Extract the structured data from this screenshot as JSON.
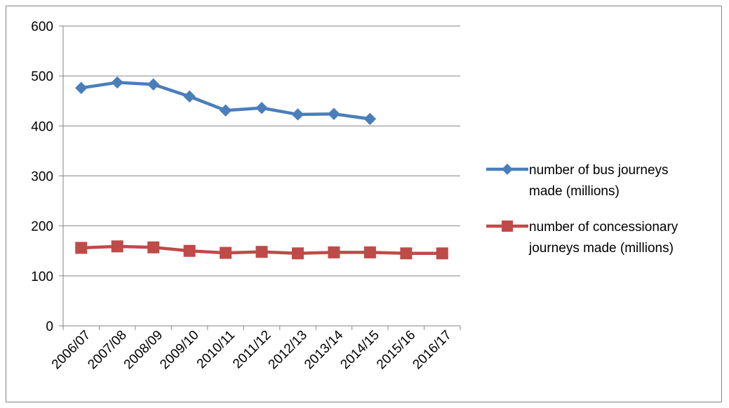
{
  "chart_data": {
    "type": "line",
    "categories": [
      "2006/07",
      "2007/08",
      "2008/09",
      "2009/10",
      "2010/11",
      "2011/12",
      "2012/13",
      "2013/14",
      "2014/15",
      "2015/16",
      "2016/17"
    ],
    "series": [
      {
        "name": "number of bus journeys made (millions)",
        "legend_lines": [
          "number of bus journeys",
          "made (millions)"
        ],
        "color": "#4a7ebb",
        "marker": "diamond",
        "values": [
          476,
          487,
          483,
          459,
          431,
          436,
          423,
          424,
          414,
          null,
          null
        ]
      },
      {
        "name": "number of concessionary journeys made (millions)",
        "legend_lines": [
          "number of concessionary",
          "journeys made (millions)"
        ],
        "color": "#be4b48",
        "marker": "square",
        "values": [
          156,
          159,
          157,
          150,
          146,
          148,
          145,
          147,
          147,
          145,
          145
        ]
      }
    ],
    "yticks": [
      "0",
      "100",
      "200",
      "300",
      "400",
      "500",
      "600"
    ],
    "ylim": [
      0,
      600
    ],
    "grid": true,
    "legend_position": "right"
  }
}
